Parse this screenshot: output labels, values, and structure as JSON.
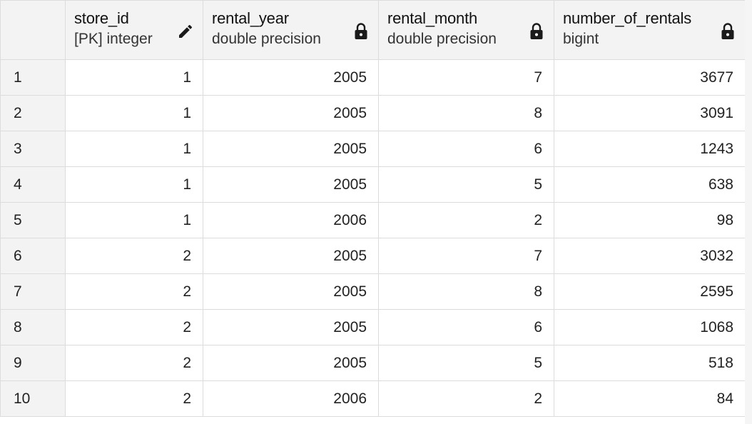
{
  "columns": [
    {
      "name": "store_id",
      "type": "[PK] integer",
      "icon": "pencil-icon"
    },
    {
      "name": "rental_year",
      "type": "double precision",
      "icon": "lock-icon"
    },
    {
      "name": "rental_month",
      "type": "double precision",
      "icon": "lock-icon"
    },
    {
      "name": "number_of_rentals",
      "type": "bigint",
      "icon": "lock-icon"
    }
  ],
  "rows": [
    {
      "num": "1",
      "cells": [
        "1",
        "2005",
        "7",
        "3677"
      ]
    },
    {
      "num": "2",
      "cells": [
        "1",
        "2005",
        "8",
        "3091"
      ]
    },
    {
      "num": "3",
      "cells": [
        "1",
        "2005",
        "6",
        "1243"
      ]
    },
    {
      "num": "4",
      "cells": [
        "1",
        "2005",
        "5",
        "638"
      ]
    },
    {
      "num": "5",
      "cells": [
        "1",
        "2006",
        "2",
        "98"
      ]
    },
    {
      "num": "6",
      "cells": [
        "2",
        "2005",
        "7",
        "3032"
      ]
    },
    {
      "num": "7",
      "cells": [
        "2",
        "2005",
        "8",
        "2595"
      ]
    },
    {
      "num": "8",
      "cells": [
        "2",
        "2005",
        "6",
        "1068"
      ]
    },
    {
      "num": "9",
      "cells": [
        "2",
        "2005",
        "5",
        "518"
      ]
    },
    {
      "num": "10",
      "cells": [
        "2",
        "2006",
        "2",
        "84"
      ]
    }
  ],
  "colors": {
    "header_bg": "#f3f3f3",
    "border": "#dcdcdc",
    "icon": "#1a1a1a"
  }
}
